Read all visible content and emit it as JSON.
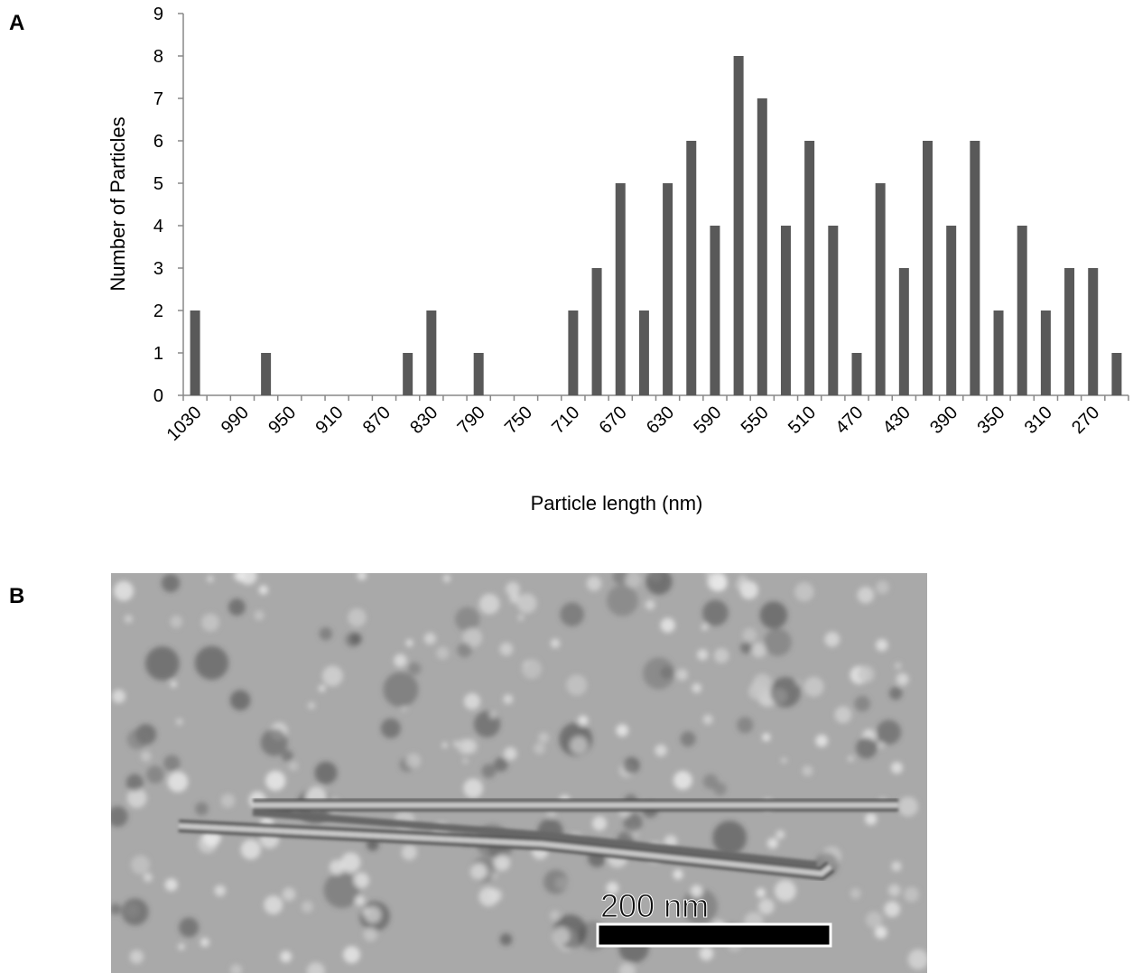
{
  "panels": [
    "A",
    "B"
  ],
  "chart_data": {
    "type": "bar",
    "xlabel": "Particle length (nm)",
    "ylabel": "Number of Particles",
    "categories": [
      "1030",
      null,
      "990",
      null,
      "950",
      null,
      "910",
      null,
      "870",
      null,
      "830",
      null,
      "790",
      null,
      "750",
      null,
      "710",
      null,
      "670",
      null,
      "630",
      null,
      "590",
      null,
      "550",
      null,
      "510",
      null,
      "470",
      null,
      "430",
      null,
      "390",
      null,
      "350",
      null,
      "310",
      null,
      "270",
      null
    ],
    "values": [
      2,
      0,
      0,
      1,
      0,
      0,
      0,
      0,
      0,
      1,
      2,
      0,
      1,
      0,
      0,
      0,
      2,
      3,
      5,
      2,
      5,
      6,
      4,
      8,
      7,
      4,
      6,
      4,
      1,
      5,
      3,
      6,
      4,
      6,
      2,
      4,
      2,
      3,
      3,
      1
    ],
    "color": "#595959",
    "ylim": [
      0,
      9
    ],
    "yticks": [
      0,
      1,
      2,
      3,
      4,
      5,
      6,
      7,
      8,
      9
    ]
  },
  "micrograph": {
    "scale_bar": "200 nm"
  }
}
